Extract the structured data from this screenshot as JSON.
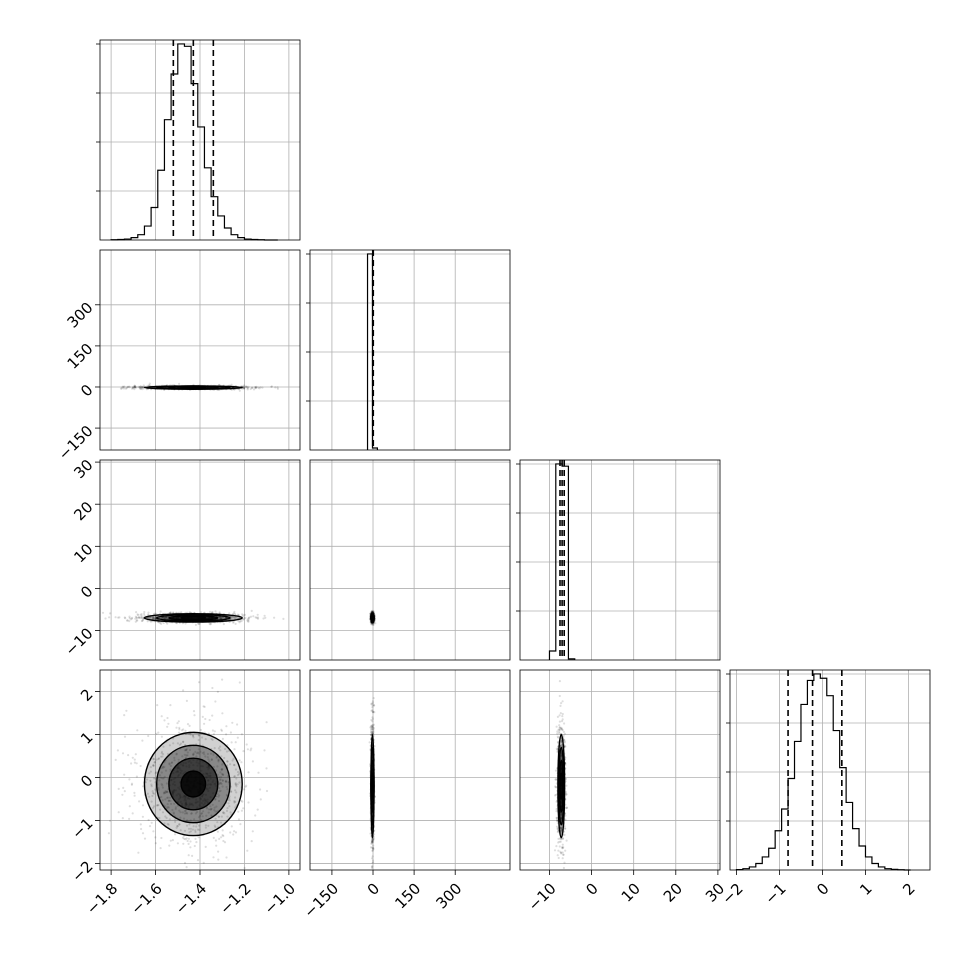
{
  "figure": {
    "type": "corner-plot",
    "variables": [
      "",
      "",
      "",
      ""
    ],
    "colors": {
      "line": "#000000",
      "grid": "#b0b0b0",
      "density": "#000000",
      "background": "#ffffff"
    }
  },
  "chart_data": [
    {
      "type": "histogram",
      "panel": "diag-0",
      "xlim": [
        -1.85,
        -0.95
      ],
      "grid": true,
      "quantiles": [
        -1.52,
        -1.43,
        -1.34
      ],
      "bins": [
        -1.8,
        -1.77,
        -1.74,
        -1.71,
        -1.68,
        -1.65,
        -1.62,
        -1.59,
        -1.56,
        -1.53,
        -1.5,
        -1.47,
        -1.44,
        -1.41,
        -1.38,
        -1.35,
        -1.32,
        -1.29,
        -1.26,
        -1.23,
        -1.2,
        -1.17,
        -1.14,
        -1.11,
        -1.08,
        -1.05
      ],
      "counts": [
        1,
        2,
        4,
        10,
        22,
        58,
        135,
        290,
        500,
        690,
        815,
        805,
        650,
        470,
        300,
        180,
        100,
        50,
        22,
        10,
        4,
        2,
        1,
        0,
        0
      ]
    },
    {
      "type": "histogram",
      "panel": "diag-1",
      "xlim": [
        -230,
        500
      ],
      "grid": true,
      "quantiles": [
        -1,
        0,
        1
      ],
      "bins": [
        -20,
        -2,
        16
      ],
      "counts": [
        990,
        10
      ]
    },
    {
      "type": "histogram",
      "panel": "diag-2",
      "xlim": [
        -17,
        30.5
      ],
      "grid": true,
      "quantiles": [
        -7.5,
        -7.0,
        -6.5
      ],
      "bins": [
        -10,
        -8.5,
        -7.0,
        -5.5,
        -4.0
      ],
      "counts": [
        40,
        870,
        860,
        5
      ]
    },
    {
      "type": "histogram",
      "panel": "diag-3",
      "xlim": [
        -2.15,
        2.5
      ],
      "grid": true,
      "quantiles": [
        -0.8,
        -0.23,
        0.45
      ],
      "bins": [
        -2.0,
        -1.85,
        -1.7,
        -1.55,
        -1.4,
        -1.25,
        -1.1,
        -0.95,
        -0.8,
        -0.65,
        -0.5,
        -0.35,
        -0.2,
        -0.05,
        0.1,
        0.25,
        0.4,
        0.55,
        0.7,
        0.85,
        1.0,
        1.15,
        1.3,
        1.45,
        1.6,
        1.75,
        1.9,
        2.05
      ],
      "counts": [
        2,
        6,
        14,
        30,
        60,
        100,
        180,
        280,
        420,
        590,
        760,
        870,
        900,
        880,
        800,
        640,
        470,
        310,
        190,
        110,
        60,
        30,
        14,
        6,
        3,
        1,
        0
      ]
    },
    {
      "type": "scatter-density",
      "panel": "pair-1-0",
      "xlim": [
        -1.85,
        -0.95
      ],
      "ylim": [
        -230,
        500
      ],
      "xcenter": -1.43,
      "ycenter": -2,
      "xspread": 0.11,
      "yspread": 3,
      "levels": [
        0.09,
        0.18,
        0.3
      ]
    },
    {
      "type": "scatter-density",
      "panel": "pair-2-0",
      "xlim": [
        -1.85,
        -0.95
      ],
      "ylim": [
        -17,
        30.5
      ],
      "xcenter": -1.43,
      "ycenter": -7.0,
      "xspread": 0.11,
      "yspread": 0.5,
      "levels": [
        0.09,
        0.18
      ]
    },
    {
      "type": "scatter-density",
      "panel": "pair-2-1",
      "xlim": [
        -230,
        500
      ],
      "ylim": [
        -17,
        30.5
      ],
      "xcenter": -2,
      "ycenter": -7.0,
      "xspread": 2.5,
      "yspread": 0.5,
      "levels": []
    },
    {
      "type": "scatter-density",
      "panel": "pair-3-0",
      "xlim": [
        -1.85,
        -0.95
      ],
      "ylim": [
        -2.15,
        2.5
      ],
      "xcenter": -1.43,
      "ycenter": -0.15,
      "xspread": 0.11,
      "yspread": 0.6,
      "levels": [
        0.12,
        0.2,
        0.3
      ]
    },
    {
      "type": "scatter-density",
      "panel": "pair-3-1",
      "xlim": [
        -230,
        500
      ],
      "ylim": [
        -2.15,
        2.5
      ],
      "xcenter": -2,
      "ycenter": -0.2,
      "xspread": 2.5,
      "yspread": 0.6,
      "levels": [
        0.09,
        0.28
      ]
    },
    {
      "type": "scatter-density",
      "panel": "pair-3-2",
      "xlim": [
        -17,
        30.5
      ],
      "ylim": [
        -2.15,
        2.5
      ],
      "xcenter": -7.2,
      "ycenter": -0.2,
      "xspread": 0.4,
      "yspread": 0.6,
      "levels": [
        0.09,
        0.28
      ]
    }
  ],
  "axes": {
    "x": [
      {
        "column": 0,
        "ticks": [
          -1.8,
          -1.6,
          -1.4,
          -1.2,
          -1.0
        ],
        "labels": [
          "−1.8",
          "−1.6",
          "−1.4",
          "−1.2",
          "−1.0"
        ]
      },
      {
        "column": 1,
        "ticks": [
          -150,
          0,
          150,
          300
        ],
        "labels": [
          "−150",
          "0",
          "150",
          "300"
        ]
      },
      {
        "column": 2,
        "ticks": [
          -10,
          0,
          10,
          20,
          30
        ],
        "labels": [
          "−10",
          "0",
          "10",
          "20",
          "30"
        ]
      },
      {
        "column": 3,
        "ticks": [
          -2,
          -1,
          0,
          1,
          2
        ],
        "labels": [
          "−2",
          "−1",
          "0",
          "1",
          "2"
        ]
      }
    ],
    "y": [
      {
        "row": 1,
        "ticks": [
          -150,
          0,
          150,
          300
        ],
        "labels": [
          "−150",
          "0",
          "150",
          "300"
        ]
      },
      {
        "row": 2,
        "ticks": [
          -10,
          0,
          10,
          20,
          30
        ],
        "labels": [
          "−10",
          "0",
          "10",
          "20",
          "30"
        ]
      },
      {
        "row": 3,
        "ticks": [
          -2,
          -1,
          0,
          1,
          2
        ],
        "labels": [
          "−2",
          "−1",
          "0",
          "1",
          "2"
        ]
      }
    ]
  }
}
